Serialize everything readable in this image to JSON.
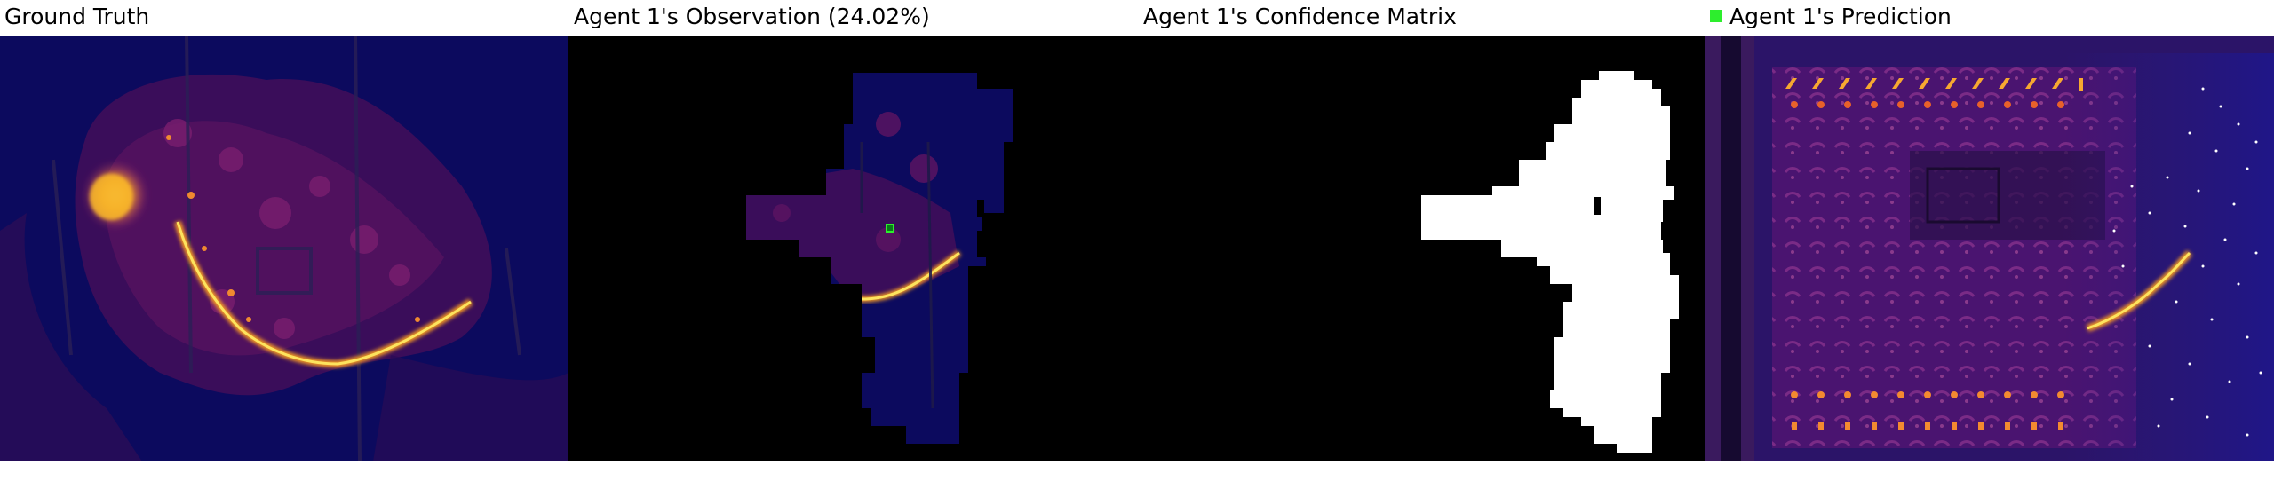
{
  "panels": [
    {
      "title": "Ground Truth"
    },
    {
      "title": "Agent 1's Observation (24.02%)"
    },
    {
      "title": "Agent 1's Confidence Matrix"
    },
    {
      "title": "Agent 1's Prediction",
      "legend_color": "#2dee2d",
      "legend_icon": "green-square"
    }
  ],
  "colors": {
    "background_navy": "#0c0a5e",
    "dark_purple": "#3a0d5a",
    "purple": "#7a1e6f",
    "hot_orange": "#f3741a",
    "hot_yellow": "#fce35a",
    "mask_white": "#ffffff",
    "mask_black": "#000000"
  }
}
